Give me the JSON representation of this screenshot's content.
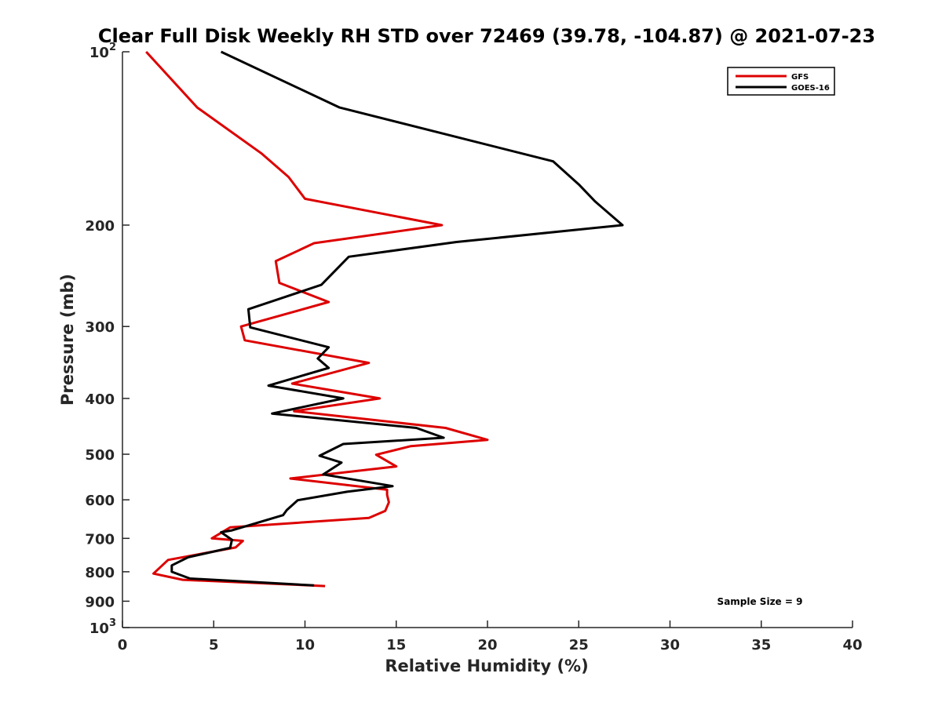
{
  "chart_data": {
    "type": "line",
    "title": "Clear Full Disk Weekly RH STD over 72469 (39.78, -104.87) @ 2021-07-23",
    "xlabel": "Relative Humidity (%)",
    "ylabel": "Pressure (mb)",
    "xlim": [
      0,
      40
    ],
    "ylim": [
      100,
      1000
    ],
    "y_scale": "log",
    "y_reversed": true,
    "x_ticks": [
      {
        "value": 0,
        "label": "0"
      },
      {
        "value": 5,
        "label": "5"
      },
      {
        "value": 10,
        "label": "10"
      },
      {
        "value": 15,
        "label": "15"
      },
      {
        "value": 20,
        "label": "20"
      },
      {
        "value": 25,
        "label": "25"
      },
      {
        "value": 30,
        "label": "30"
      },
      {
        "value": 35,
        "label": "35"
      },
      {
        "value": 40,
        "label": "40"
      }
    ],
    "y_ticks": [
      {
        "value": 100,
        "base": "10",
        "exp": "2"
      },
      {
        "value": 200,
        "label": "200"
      },
      {
        "value": 300,
        "label": "300"
      },
      {
        "value": 400,
        "label": "400"
      },
      {
        "value": 500,
        "label": "500"
      },
      {
        "value": 600,
        "label": "600"
      },
      {
        "value": 700,
        "label": "700"
      },
      {
        "value": 800,
        "label": "800"
      },
      {
        "value": 900,
        "label": "900"
      },
      {
        "value": 1000,
        "base": "10",
        "exp": "3"
      }
    ],
    "legend_position": "top-right",
    "grid": false,
    "series": [
      {
        "name": "GFS",
        "color": "#dd0000",
        "points": [
          [
            1.3,
            100
          ],
          [
            4.1,
            125
          ],
          [
            7.6,
            150
          ],
          [
            9.1,
            165
          ],
          [
            10.0,
            180
          ],
          [
            17.5,
            200
          ],
          [
            10.5,
            215
          ],
          [
            8.4,
            231
          ],
          [
            8.6,
            252
          ],
          [
            11.3,
            272
          ],
          [
            6.5,
            300
          ],
          [
            6.7,
            317
          ],
          [
            13.5,
            347
          ],
          [
            9.3,
            377
          ],
          [
            14.1,
            400
          ],
          [
            9.4,
            421
          ],
          [
            17.7,
            450
          ],
          [
            20.0,
            472
          ],
          [
            15.8,
            484
          ],
          [
            13.9,
            501
          ],
          [
            15.0,
            525
          ],
          [
            9.2,
            551
          ],
          [
            14.5,
            576
          ],
          [
            14.5,
            588
          ],
          [
            14.6,
            606
          ],
          [
            14.4,
            627
          ],
          [
            13.5,
            645
          ],
          [
            5.9,
            670
          ],
          [
            4.9,
            700
          ],
          [
            6.6,
            707
          ],
          [
            6.2,
            726
          ],
          [
            2.5,
            763
          ],
          [
            1.7,
            806
          ],
          [
            3.3,
            826
          ],
          [
            11.1,
            847
          ]
        ]
      },
      {
        "name": "GOES-16",
        "color": "#000000",
        "points": [
          [
            5.4,
            100
          ],
          [
            11.9,
            125
          ],
          [
            23.6,
            155
          ],
          [
            25.0,
            170
          ],
          [
            25.9,
            182
          ],
          [
            27.4,
            200
          ],
          [
            18.3,
            214
          ],
          [
            12.4,
            227
          ],
          [
            10.9,
            254
          ],
          [
            6.9,
            280
          ],
          [
            7.0,
            301
          ],
          [
            11.3,
            326
          ],
          [
            10.7,
            341
          ],
          [
            11.3,
            354
          ],
          [
            8.0,
            380
          ],
          [
            12.1,
            400
          ],
          [
            8.2,
            425
          ],
          [
            16.1,
            450
          ],
          [
            17.6,
            468
          ],
          [
            12.1,
            480
          ],
          [
            10.8,
            503
          ],
          [
            12.0,
            517
          ],
          [
            11.0,
            542
          ],
          [
            14.8,
            568
          ],
          [
            12.3,
            581
          ],
          [
            9.6,
            601
          ],
          [
            9.0,
            625
          ],
          [
            8.8,
            638
          ],
          [
            6.0,
            678
          ],
          [
            5.4,
            683
          ],
          [
            6.0,
            704
          ],
          [
            5.9,
            727
          ],
          [
            3.6,
            755
          ],
          [
            2.7,
            780
          ],
          [
            2.7,
            800
          ],
          [
            3.7,
            822
          ],
          [
            10.5,
            845
          ]
        ]
      }
    ],
    "annotations": [
      {
        "text": "Sample Size = 9"
      }
    ]
  }
}
